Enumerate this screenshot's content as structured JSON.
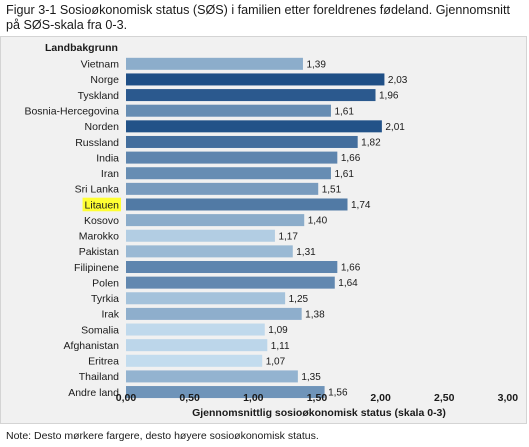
{
  "figure": {
    "title": "Figur 3-1 Sosioøkonomisk status (SØS) i familien etter foreldrenes fødeland. Gjennomsnitt på SØS-skala fra 0-3.",
    "note": "Note: Desto mørkere fargere, desto høyere sosioøkonomisk status."
  },
  "chart_data": {
    "type": "bar",
    "orientation": "horizontal",
    "category_axis_title": "Landbakgrunn",
    "xlabel": "Gjennomsnittlig sosioøkonomisk status (skala 0-3)",
    "xlim": [
      0,
      3
    ],
    "xticks": [
      "0,00",
      "0,50",
      "1,00",
      "1,50",
      "2,00",
      "2,50",
      "3,00"
    ],
    "grid": false,
    "highlighted_category": "Litauen",
    "highlight_color": "#ffff33",
    "color_scale": [
      "#c3dcee",
      "#1f4f86"
    ],
    "categories": [
      "Vietnam",
      "Norge",
      "Tyskland",
      "Bosnia-Hercegovina",
      "Norden",
      "Russland",
      "India",
      "Iran",
      "Sri Lanka",
      "Litauen",
      "Kosovo",
      "Marokko",
      "Pakistan",
      "Filipinene",
      "Polen",
      "Tyrkia",
      "Irak",
      "Somalia",
      "Afghanistan",
      "Eritrea",
      "Thailand",
      "Andre land"
    ],
    "values": [
      1.39,
      2.03,
      1.96,
      1.61,
      2.01,
      1.82,
      1.66,
      1.61,
      1.51,
      1.74,
      1.4,
      1.17,
      1.31,
      1.66,
      1.64,
      1.25,
      1.38,
      1.09,
      1.11,
      1.07,
      1.35,
      1.56
    ],
    "value_labels": [
      "1,39",
      "2,03",
      "1,96",
      "1,61",
      "2,01",
      "1,82",
      "1,66",
      "1,61",
      "1,51",
      "1,74",
      "1,40",
      "1,17",
      "1,31",
      "1,66",
      "1,64",
      "1,25",
      "1,38",
      "1,09",
      "1,11",
      "1,07",
      "1,35",
      "1,56"
    ]
  }
}
